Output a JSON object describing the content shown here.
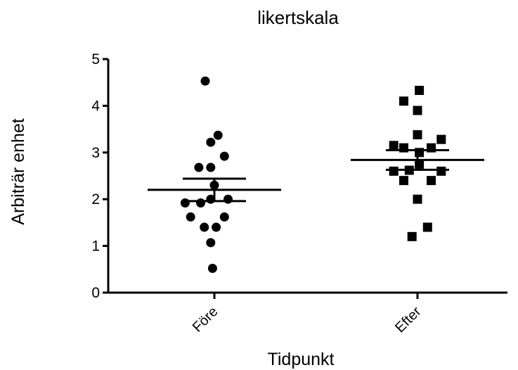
{
  "chart_data": {
    "type": "scatter",
    "title": "likertskala",
    "xlabel": "Tidpunkt",
    "ylabel": "Arbiträr enhet",
    "ylim": [
      0,
      5
    ],
    "yticks": [
      "0",
      "1",
      "2",
      "3",
      "4",
      "5"
    ],
    "grid": false,
    "categories": [
      "Före",
      "Efter"
    ],
    "series": [
      {
        "category": "Före",
        "marker": "circle",
        "points": [
          {
            "x": -0.1,
            "y": 4.53
          },
          {
            "x": 0.04,
            "y": 3.37
          },
          {
            "x": -0.04,
            "y": 3.22
          },
          {
            "x": 0.11,
            "y": 2.92
          },
          {
            "x": -0.17,
            "y": 2.68
          },
          {
            "x": -0.04,
            "y": 2.68
          },
          {
            "x": 0.0,
            "y": 2.3
          },
          {
            "x": -0.04,
            "y": 2.0
          },
          {
            "x": 0.15,
            "y": 2.0
          },
          {
            "x": -0.32,
            "y": 1.92
          },
          {
            "x": -0.15,
            "y": 1.92
          },
          {
            "x": -0.26,
            "y": 1.62
          },
          {
            "x": 0.11,
            "y": 1.62
          },
          {
            "x": -0.11,
            "y": 1.4
          },
          {
            "x": 0.02,
            "y": 1.4
          },
          {
            "x": -0.04,
            "y": 1.07
          },
          {
            "x": -0.02,
            "y": 0.52
          }
        ],
        "mean": 2.2,
        "sem": 0.24
      },
      {
        "category": "Efter",
        "marker": "square",
        "points": [
          {
            "x": 0.02,
            "y": 4.33
          },
          {
            "x": -0.15,
            "y": 4.1
          },
          {
            "x": 0.0,
            "y": 3.9
          },
          {
            "x": 0.0,
            "y": 3.38
          },
          {
            "x": 0.26,
            "y": 3.28
          },
          {
            "x": -0.26,
            "y": 3.15
          },
          {
            "x": -0.15,
            "y": 3.1
          },
          {
            "x": 0.15,
            "y": 3.1
          },
          {
            "x": 0.02,
            "y": 3.0
          },
          {
            "x": -0.26,
            "y": 2.6
          },
          {
            "x": -0.09,
            "y": 2.62
          },
          {
            "x": 0.02,
            "y": 2.75
          },
          {
            "x": 0.26,
            "y": 2.6
          },
          {
            "x": -0.15,
            "y": 2.4
          },
          {
            "x": 0.15,
            "y": 2.4
          },
          {
            "x": 0.0,
            "y": 2.0
          },
          {
            "x": 0.11,
            "y": 1.4
          },
          {
            "x": -0.06,
            "y": 1.2
          }
        ],
        "mean": 2.84,
        "sem": 0.21
      }
    ],
    "colors": {
      "marker": "#000000",
      "axis": "#000000",
      "background": "#ffffff"
    }
  }
}
